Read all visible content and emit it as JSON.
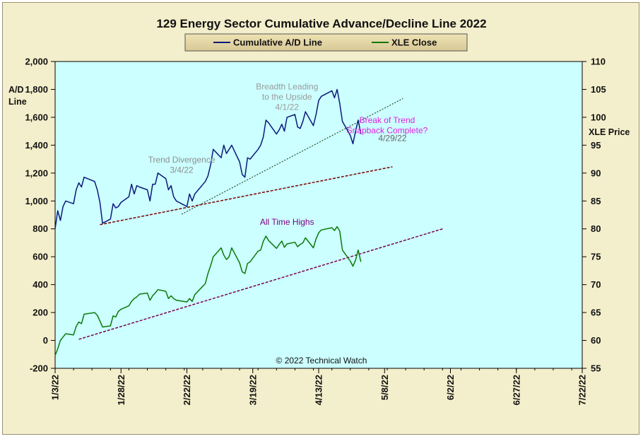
{
  "chart_data": {
    "type": "line",
    "title": "129 Energy Sector Cumulative Advance/Decline Line 2022",
    "legend": {
      "position": "top-center",
      "entries": [
        {
          "label": "Cumulative A/D Line",
          "color": "#0a1a7a"
        },
        {
          "label": "XLE Close",
          "color": "#0a7a0a"
        }
      ]
    },
    "y_left": {
      "label_line1": "A/D",
      "label_line2": "Line",
      "range": [
        -200,
        2000
      ],
      "ticks": [
        "2,000",
        "1,800",
        "1,600",
        "1,400",
        "1,200",
        "1,000",
        "800",
        "600",
        "400",
        "200",
        "0",
        "-200"
      ]
    },
    "y_right": {
      "label": "XLE Price",
      "range": [
        55,
        110
      ],
      "ticks": [
        "110",
        "105",
        "100",
        "95",
        "90",
        "85",
        "80",
        "75",
        "70",
        "65",
        "60",
        "55"
      ]
    },
    "x_axis": {
      "range": [
        "2022-01-03",
        "2022-07-22"
      ],
      "ticks": [
        "1/3/22",
        "1/28/22",
        "2/22/22",
        "3/19/22",
        "4/13/22",
        "5/8/22",
        "6/2/22",
        "6/27/22",
        "7/22/22"
      ]
    },
    "grid": false,
    "plot_background": "#ccffff",
    "frame_background": "#f3eecb",
    "copyright": "© 2022 Technical Watch",
    "series": [
      {
        "name": "Cumulative A/D Line",
        "axis": "left",
        "color": "#0a1a7a",
        "points": [
          [
            "2022-01-03",
            800
          ],
          [
            "2022-01-04",
            930
          ],
          [
            "2022-01-05",
            860
          ],
          [
            "2022-01-06",
            960
          ],
          [
            "2022-01-07",
            1000
          ],
          [
            "2022-01-10",
            980
          ],
          [
            "2022-01-11",
            1080
          ],
          [
            "2022-01-12",
            1130
          ],
          [
            "2022-01-13",
            1100
          ],
          [
            "2022-01-14",
            1170
          ],
          [
            "2022-01-18",
            1140
          ],
          [
            "2022-01-19",
            1080
          ],
          [
            "2022-01-20",
            990
          ],
          [
            "2022-01-21",
            840
          ],
          [
            "2022-01-24",
            870
          ],
          [
            "2022-01-25",
            980
          ],
          [
            "2022-01-26",
            950
          ],
          [
            "2022-01-27",
            960
          ],
          [
            "2022-01-28",
            990
          ],
          [
            "2022-01-31",
            1030
          ],
          [
            "2022-02-01",
            1120
          ],
          [
            "2022-02-02",
            1050
          ],
          [
            "2022-02-03",
            1110
          ],
          [
            "2022-02-04",
            1100
          ],
          [
            "2022-02-07",
            1080
          ],
          [
            "2022-02-08",
            1000
          ],
          [
            "2022-02-09",
            1120
          ],
          [
            "2022-02-10",
            1120
          ],
          [
            "2022-02-11",
            1200
          ],
          [
            "2022-02-14",
            1160
          ],
          [
            "2022-02-15",
            1080
          ],
          [
            "2022-02-16",
            1110
          ],
          [
            "2022-02-17",
            1030
          ],
          [
            "2022-02-18",
            1000
          ],
          [
            "2022-02-22",
            960
          ],
          [
            "2022-02-23",
            1050
          ],
          [
            "2022-02-24",
            1000
          ],
          [
            "2022-02-25",
            1050
          ],
          [
            "2022-03-01",
            1140
          ],
          [
            "2022-03-02",
            1180
          ],
          [
            "2022-03-03",
            1260
          ],
          [
            "2022-03-04",
            1370
          ],
          [
            "2022-03-07",
            1310
          ],
          [
            "2022-03-08",
            1400
          ],
          [
            "2022-03-09",
            1340
          ],
          [
            "2022-03-10",
            1370
          ],
          [
            "2022-03-11",
            1400
          ],
          [
            "2022-03-14",
            1280
          ],
          [
            "2022-03-15",
            1190
          ],
          [
            "2022-03-16",
            1170
          ],
          [
            "2022-03-17",
            1310
          ],
          [
            "2022-03-18",
            1300
          ],
          [
            "2022-03-21",
            1370
          ],
          [
            "2022-03-22",
            1400
          ],
          [
            "2022-03-23",
            1460
          ],
          [
            "2022-03-24",
            1580
          ],
          [
            "2022-03-25",
            1560
          ],
          [
            "2022-03-28",
            1480
          ],
          [
            "2022-03-29",
            1510
          ],
          [
            "2022-03-30",
            1550
          ],
          [
            "2022-03-31",
            1500
          ],
          [
            "2022-04-01",
            1600
          ],
          [
            "2022-04-04",
            1620
          ],
          [
            "2022-04-05",
            1530
          ],
          [
            "2022-04-06",
            1520
          ],
          [
            "2022-04-07",
            1570
          ],
          [
            "2022-04-08",
            1640
          ],
          [
            "2022-04-11",
            1540
          ],
          [
            "2022-04-12",
            1620
          ],
          [
            "2022-04-13",
            1720
          ],
          [
            "2022-04-14",
            1750
          ],
          [
            "2022-04-18",
            1790
          ],
          [
            "2022-04-19",
            1740
          ],
          [
            "2022-04-20",
            1800
          ],
          [
            "2022-04-21",
            1700
          ],
          [
            "2022-04-22",
            1570
          ],
          [
            "2022-04-25",
            1470
          ],
          [
            "2022-04-26",
            1410
          ],
          [
            "2022-04-27",
            1500
          ],
          [
            "2022-04-28",
            1580
          ],
          [
            "2022-04-29",
            1480
          ]
        ]
      },
      {
        "name": "XLE Close",
        "axis": "right",
        "color": "#0a7a0a",
        "points": [
          [
            "2022-01-03",
            57.3
          ],
          [
            "2022-01-04",
            58.5
          ],
          [
            "2022-01-05",
            60.0
          ],
          [
            "2022-01-06",
            60.6
          ],
          [
            "2022-01-07",
            61.2
          ],
          [
            "2022-01-10",
            61.0
          ],
          [
            "2022-01-11",
            62.5
          ],
          [
            "2022-01-12",
            63.3
          ],
          [
            "2022-01-13",
            63.0
          ],
          [
            "2022-01-14",
            64.7
          ],
          [
            "2022-01-18",
            65.0
          ],
          [
            "2022-01-19",
            64.5
          ],
          [
            "2022-01-20",
            63.5
          ],
          [
            "2022-01-21",
            62.4
          ],
          [
            "2022-01-24",
            62.6
          ],
          [
            "2022-01-25",
            64.4
          ],
          [
            "2022-01-26",
            64.2
          ],
          [
            "2022-01-27",
            65.2
          ],
          [
            "2022-01-28",
            65.6
          ],
          [
            "2022-01-31",
            66.2
          ],
          [
            "2022-02-01",
            67.0
          ],
          [
            "2022-02-02",
            67.5
          ],
          [
            "2022-02-03",
            67.8
          ],
          [
            "2022-02-04",
            68.3
          ],
          [
            "2022-02-07",
            68.5
          ],
          [
            "2022-02-08",
            67.2
          ],
          [
            "2022-02-09",
            68.0
          ],
          [
            "2022-02-10",
            68.5
          ],
          [
            "2022-02-11",
            69.1
          ],
          [
            "2022-02-14",
            68.8
          ],
          [
            "2022-02-15",
            67.5
          ],
          [
            "2022-02-16",
            68.0
          ],
          [
            "2022-02-17",
            67.5
          ],
          [
            "2022-02-18",
            67.2
          ],
          [
            "2022-02-22",
            66.9
          ],
          [
            "2022-02-23",
            67.5
          ],
          [
            "2022-02-24",
            67.0
          ],
          [
            "2022-02-25",
            68.2
          ],
          [
            "2022-03-01",
            70.2
          ],
          [
            "2022-03-02",
            72.0
          ],
          [
            "2022-03-03",
            73.4
          ],
          [
            "2022-03-04",
            75.0
          ],
          [
            "2022-03-07",
            76.6
          ],
          [
            "2022-03-08",
            75.3
          ],
          [
            "2022-03-09",
            74.5
          ],
          [
            "2022-03-10",
            75.0
          ],
          [
            "2022-03-11",
            76.6
          ],
          [
            "2022-03-14",
            73.9
          ],
          [
            "2022-03-15",
            72.3
          ],
          [
            "2022-03-16",
            72.0
          ],
          [
            "2022-03-17",
            73.8
          ],
          [
            "2022-03-18",
            74.1
          ],
          [
            "2022-03-21",
            76.0
          ],
          [
            "2022-03-22",
            76.2
          ],
          [
            "2022-03-23",
            77.8
          ],
          [
            "2022-03-24",
            78.7
          ],
          [
            "2022-03-25",
            77.9
          ],
          [
            "2022-03-28",
            76.5
          ],
          [
            "2022-03-29",
            77.2
          ],
          [
            "2022-03-30",
            77.8
          ],
          [
            "2022-03-31",
            76.7
          ],
          [
            "2022-04-01",
            77.3
          ],
          [
            "2022-04-04",
            77.6
          ],
          [
            "2022-04-05",
            76.8
          ],
          [
            "2022-04-06",
            77.2
          ],
          [
            "2022-04-07",
            77.5
          ],
          [
            "2022-04-08",
            78.4
          ],
          [
            "2022-04-11",
            76.6
          ],
          [
            "2022-04-12",
            78.2
          ],
          [
            "2022-04-13",
            79.3
          ],
          [
            "2022-04-14",
            79.8
          ],
          [
            "2022-04-18",
            80.2
          ],
          [
            "2022-04-19",
            79.7
          ],
          [
            "2022-04-20",
            80.4
          ],
          [
            "2022-04-21",
            79.6
          ],
          [
            "2022-04-22",
            76.2
          ],
          [
            "2022-04-25",
            74.2
          ],
          [
            "2022-04-26",
            73.3
          ],
          [
            "2022-04-27",
            74.4
          ],
          [
            "2022-04-28",
            76.2
          ],
          [
            "2022-04-29",
            74.1
          ]
        ]
      }
    ],
    "trendlines": [
      {
        "axis": "left",
        "color": "#7a0000",
        "style": "dashed",
        "from": [
          "2022-01-20",
          830
        ],
        "to": [
          "2022-05-11",
          1245
        ]
      },
      {
        "axis": "left",
        "color": "#2a4a2a",
        "style": "dotted",
        "from": [
          "2022-02-20",
          905
        ],
        "to": [
          "2022-05-15",
          1735
        ]
      },
      {
        "axis": "right",
        "color": "#7a0050",
        "style": "dashed",
        "from": [
          "2022-01-12",
          60.2
        ],
        "to": [
          "2022-05-30",
          80.0
        ]
      }
    ],
    "annotations": [
      {
        "lines": [
          "Trend  Divergence",
          "3/4/22"
        ],
        "color": "#8e8e8e",
        "anchor": [
          "2022-02-20",
          1275
        ]
      },
      {
        "lines": [
          "Breadth Leading",
          "to the Upside",
          "4/1/22"
        ],
        "color": "#9a9a9a",
        "anchor": [
          "2022-04-01",
          1800
        ]
      },
      {
        "lines": [
          "Break of Trend",
          "Snapback Complete?"
        ],
        "color": "#e020e0",
        "anchor": [
          "2022-05-09",
          1560
        ]
      },
      {
        "lines": [
          "4/29/22"
        ],
        "color": "#666666",
        "anchor": [
          "2022-05-11",
          1430
        ]
      },
      {
        "lines": [
          "All Time Highs"
        ],
        "color": "#800080",
        "anchor": [
          "2022-04-01",
          830
        ]
      }
    ]
  }
}
